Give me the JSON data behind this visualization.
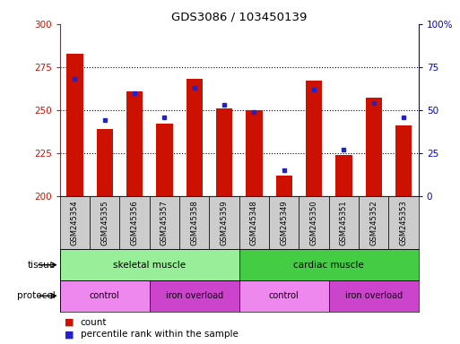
{
  "title": "GDS3086 / 103450139",
  "samples": [
    "GSM245354",
    "GSM245355",
    "GSM245356",
    "GSM245357",
    "GSM245358",
    "GSM245359",
    "GSM245348",
    "GSM245349",
    "GSM245350",
    "GSM245351",
    "GSM245352",
    "GSM245353"
  ],
  "count_values": [
    283,
    239,
    261,
    242,
    268,
    251,
    250,
    212,
    267,
    224,
    257,
    241
  ],
  "percentile_values": [
    68,
    44,
    60,
    46,
    63,
    53,
    49,
    15,
    62,
    27,
    54,
    46
  ],
  "ylim_left": [
    200,
    300
  ],
  "ylim_right": [
    0,
    100
  ],
  "yticks_left": [
    200,
    225,
    250,
    275,
    300
  ],
  "yticks_right": [
    0,
    25,
    50,
    75,
    100
  ],
  "bar_color": "#cc1100",
  "dot_color": "#2222cc",
  "bar_width": 0.55,
  "tissue_groups": [
    {
      "label": "skeletal muscle",
      "start": 0,
      "end": 5,
      "color": "#99ee99"
    },
    {
      "label": "cardiac muscle",
      "start": 6,
      "end": 11,
      "color": "#44cc44"
    }
  ],
  "protocol_groups": [
    {
      "label": "control",
      "start": 0,
      "end": 2,
      "color": "#ee88ee"
    },
    {
      "label": "iron overload",
      "start": 3,
      "end": 5,
      "color": "#cc44cc"
    },
    {
      "label": "control",
      "start": 6,
      "end": 8,
      "color": "#ee88ee"
    },
    {
      "label": "iron overload",
      "start": 9,
      "end": 11,
      "color": "#cc44cc"
    }
  ],
  "legend_count_label": "count",
  "legend_percentile_label": "percentile rank within the sample",
  "tissue_label": "tissue",
  "protocol_label": "protocol",
  "left_axis_color": "#cc1100",
  "right_axis_color": "#0000cc",
  "background_color": "#ffffff",
  "xtick_bg_color": "#cccccc",
  "grid_dotted_color": "#000000"
}
